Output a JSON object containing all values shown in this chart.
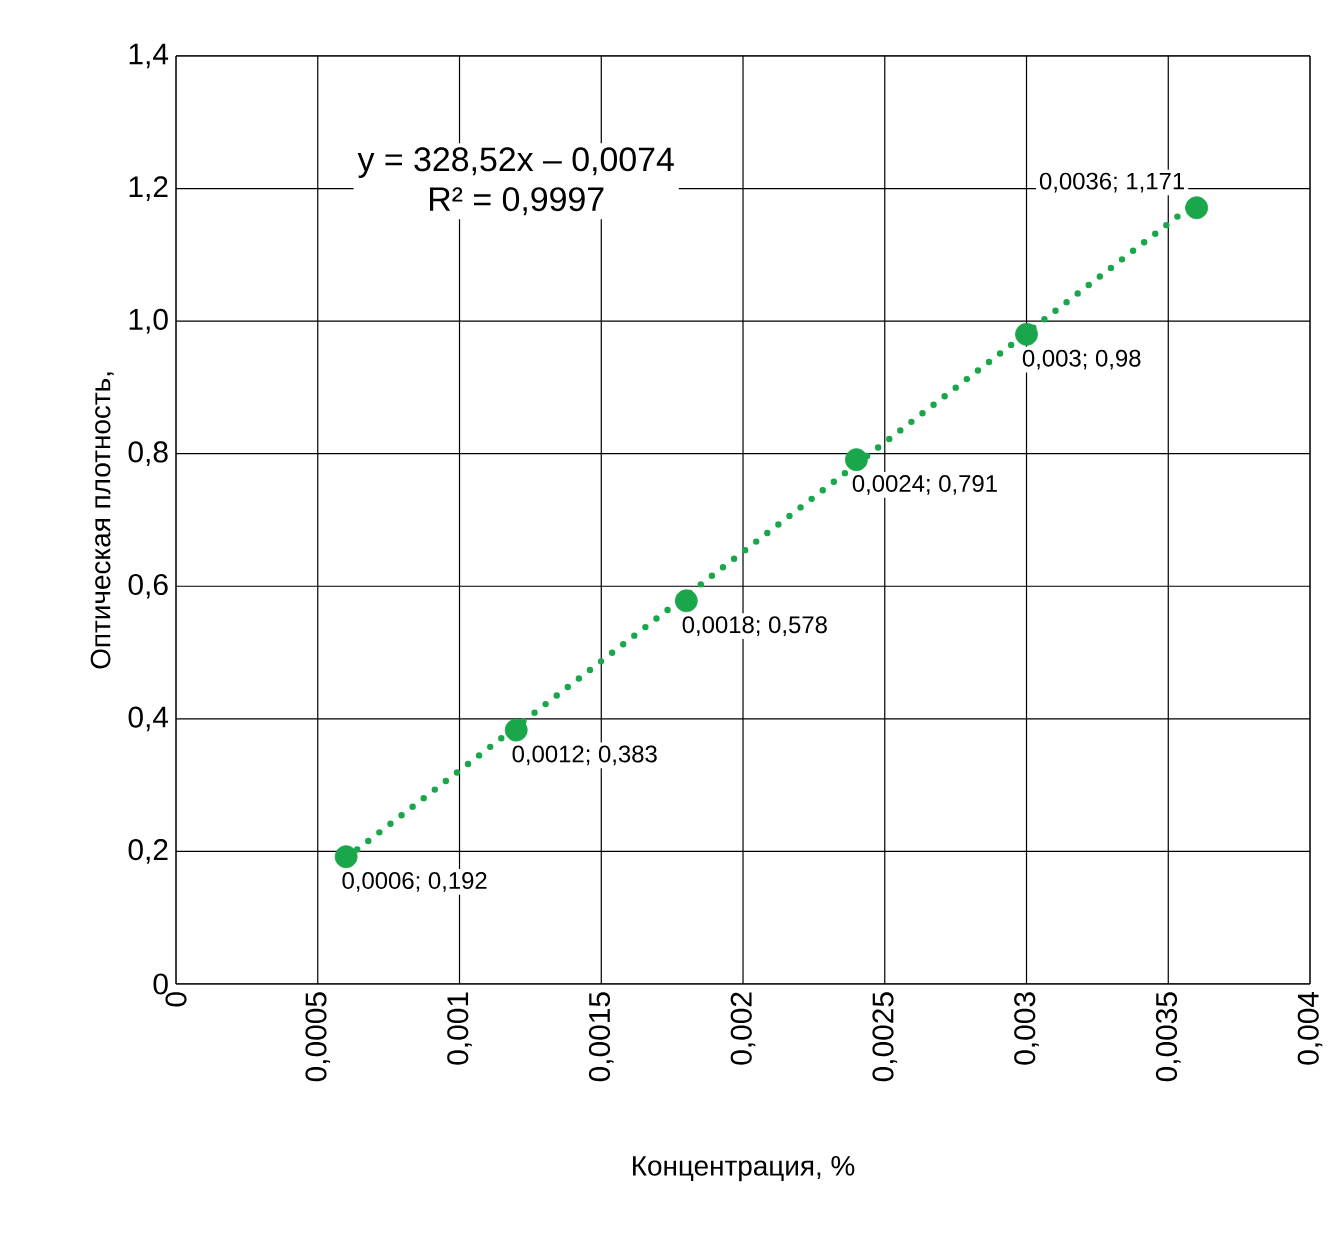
{
  "chart_data": {
    "type": "scatter",
    "xlabel": "Концентрация, %",
    "ylabel": "Оптическая плотность,",
    "annotations": [
      "y = 328,52x – 0,0074",
      "R² = 0,9997"
    ],
    "xlim": [
      0,
      0.004
    ],
    "ylim": [
      0,
      1.4
    ],
    "xticks": [
      {
        "value": 0,
        "label": "0"
      },
      {
        "value": 0.0005,
        "label": "0,0005"
      },
      {
        "value": 0.001,
        "label": "0,001"
      },
      {
        "value": 0.0015,
        "label": "0,0015"
      },
      {
        "value": 0.002,
        "label": "0,002"
      },
      {
        "value": 0.0025,
        "label": "0,0025"
      },
      {
        "value": 0.003,
        "label": "0,003"
      },
      {
        "value": 0.0035,
        "label": "0,0035"
      },
      {
        "value": 0.004,
        "label": "0,004"
      }
    ],
    "yticks": [
      {
        "value": 0,
        "label": "0"
      },
      {
        "value": 0.2,
        "label": "0,2"
      },
      {
        "value": 0.4,
        "label": "0,4"
      },
      {
        "value": 0.6,
        "label": "0,6"
      },
      {
        "value": 0.8,
        "label": "0,8"
      },
      {
        "value": 1.0,
        "label": "1,0"
      },
      {
        "value": 1.2,
        "label": "1,2"
      },
      {
        "value": 1.4,
        "label": "1,4"
      }
    ],
    "grid": true,
    "series": [
      {
        "type": "line",
        "color": "#1aa64a",
        "line_style": "dotted",
        "marker": "none",
        "x": [
          0.0006,
          0.0036
        ],
        "values": [
          0.19,
          1.18
        ]
      },
      {
        "color": "#1aa64a",
        "marker": "circle",
        "x": [
          0.0006,
          0.0012,
          0.0018,
          0.0024,
          0.003,
          0.0036
        ],
        "values": [
          0.192,
          0.383,
          0.578,
          0.791,
          0.98,
          1.171
        ],
        "value_labels": [
          "0,0006; 0,192",
          "0,0012; 0,383",
          "0,0018; 0,578",
          "0,0024; 0,791",
          "0,003; 0,98",
          "0,0036; 1,171"
        ]
      }
    ]
  }
}
